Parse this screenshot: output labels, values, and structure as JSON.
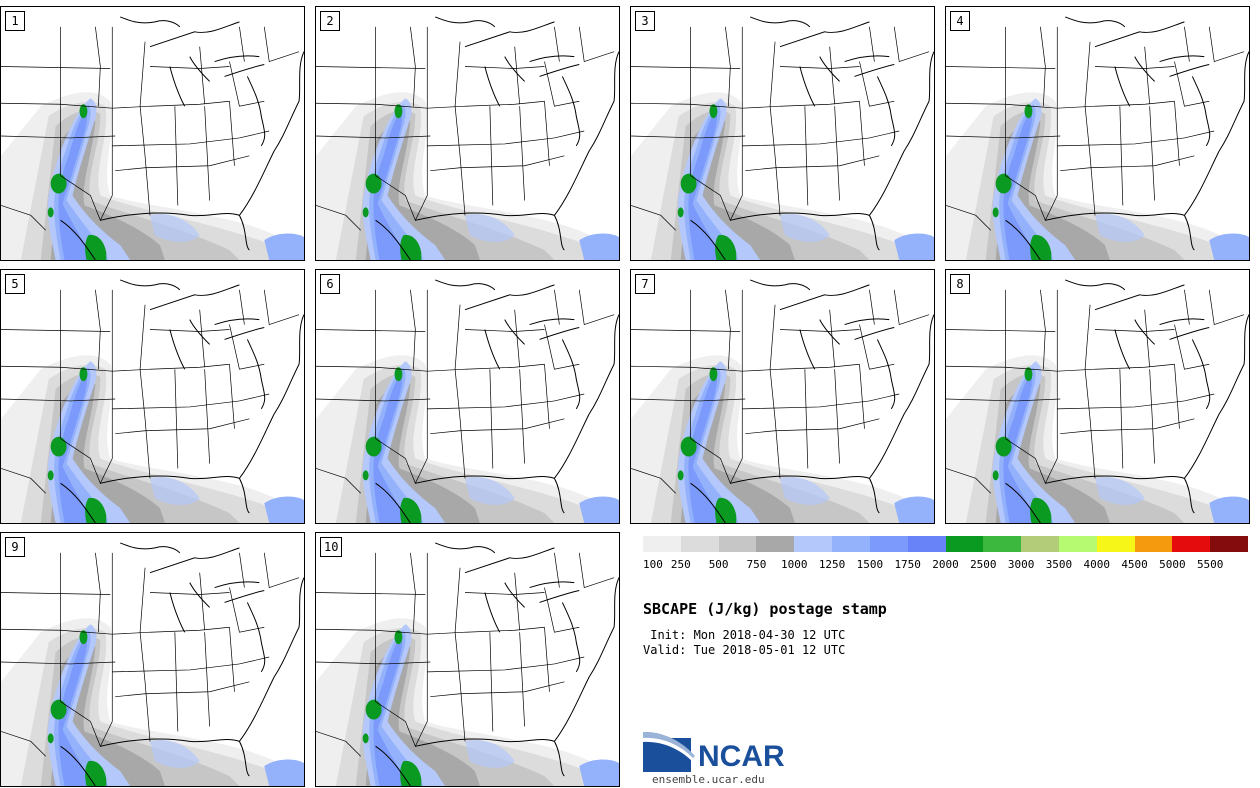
{
  "panels": [
    {
      "number": "1"
    },
    {
      "number": "2"
    },
    {
      "number": "3"
    },
    {
      "number": "4"
    },
    {
      "number": "5"
    },
    {
      "number": "6"
    },
    {
      "number": "7"
    },
    {
      "number": "8"
    },
    {
      "number": "9"
    },
    {
      "number": "10"
    }
  ],
  "colorbar": {
    "colors": [
      "#efefef",
      "#dcdcdc",
      "#c6c6c6",
      "#a8a8a8",
      "#b4c8fb",
      "#94b2fb",
      "#7c9afb",
      "#6882f8",
      "#0a9a22",
      "#3cb83e",
      "#b2cc7a",
      "#b6fa72",
      "#f6f618",
      "#f59a0e",
      "#e40c0c",
      "#840c0c"
    ],
    "labels": [
      "100",
      "250",
      "500",
      "750",
      "1000",
      "1250",
      "1500",
      "1750",
      "2000",
      "2500",
      "3000",
      "3500",
      "4000",
      "4500",
      "5000",
      "5500"
    ]
  },
  "title": "SBCAPE (J/kg) postage stamp",
  "init": " Init: Mon 2018-04-30 12 UTC",
  "valid": "Valid: Tue 2018-05-01 12 UTC",
  "logo": {
    "text": "NCAR",
    "url": "ensemble.ucar.edu",
    "color": "#1a4f9c"
  }
}
